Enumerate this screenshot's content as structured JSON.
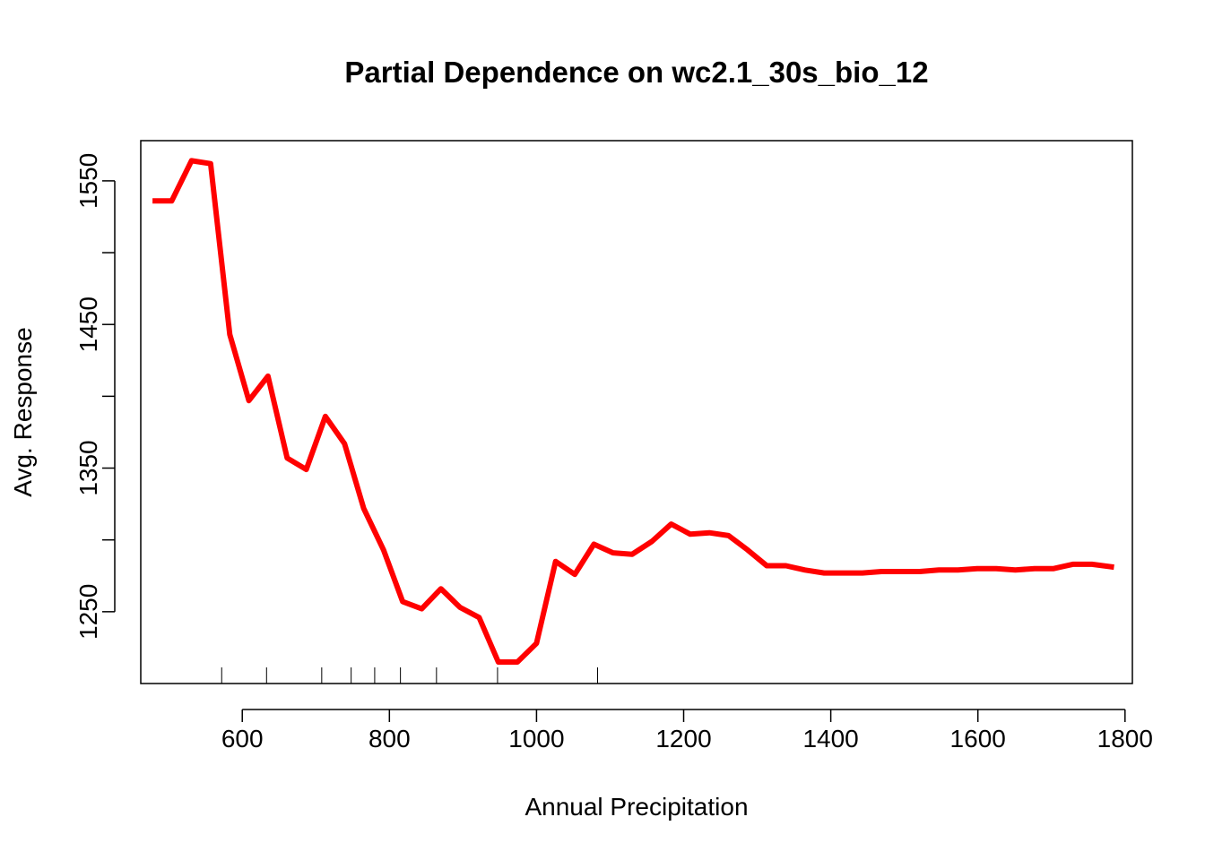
{
  "chart_data": {
    "type": "line",
    "title": "Partial Dependence on wc2.1_30s_bio_12",
    "xlabel": "Annual Precipitation",
    "ylabel": "Avg. Response",
    "xlim": [
      462,
      1810
    ],
    "ylim": [
      1200,
      1578
    ],
    "x_ticks": [
      600,
      800,
      1000,
      1200,
      1400,
      1600,
      1800
    ],
    "x_tick_labels": [
      "600",
      "800",
      "1000",
      "1200",
      "1400",
      "1600",
      "1800"
    ],
    "y_ticks": [
      1250,
      1300,
      1350,
      1400,
      1450,
      1500,
      1550
    ],
    "y_tick_labels": [
      "1250",
      "",
      "1350",
      "",
      "1450",
      "",
      "1550"
    ],
    "line_color": "#ff0000",
    "grid": false,
    "rug": [
      572,
      633,
      708,
      748,
      780,
      815,
      864,
      947,
      1083
    ],
    "series": [
      {
        "x": [
          478,
          504,
          531,
          557,
          583,
          609,
          635,
          661,
          687,
          713,
          739,
          765,
          792,
          818,
          844,
          870,
          896,
          922,
          948,
          974,
          1000,
          1026,
          1052,
          1078,
          1104,
          1130,
          1157,
          1183,
          1209,
          1235,
          1261,
          1287,
          1313,
          1339,
          1365,
          1391,
          1417,
          1443,
          1469,
          1495,
          1521,
          1547,
          1573,
          1599,
          1625,
          1651,
          1677,
          1703,
          1729,
          1755,
          1785
        ],
        "values": [
          1536,
          1536,
          1564,
          1562,
          1443,
          1397,
          1414,
          1357,
          1349,
          1386,
          1367,
          1322,
          1293,
          1257,
          1252,
          1266,
          1253,
          1246,
          1215,
          1215,
          1228,
          1285,
          1276,
          1297,
          1291,
          1290,
          1299,
          1311,
          1304,
          1305,
          1303,
          1293,
          1282,
          1282,
          1279,
          1277,
          1277,
          1277,
          1278,
          1278,
          1278,
          1279,
          1279,
          1280,
          1280,
          1279,
          1280,
          1280,
          1283,
          1283,
          1281
        ]
      }
    ]
  }
}
